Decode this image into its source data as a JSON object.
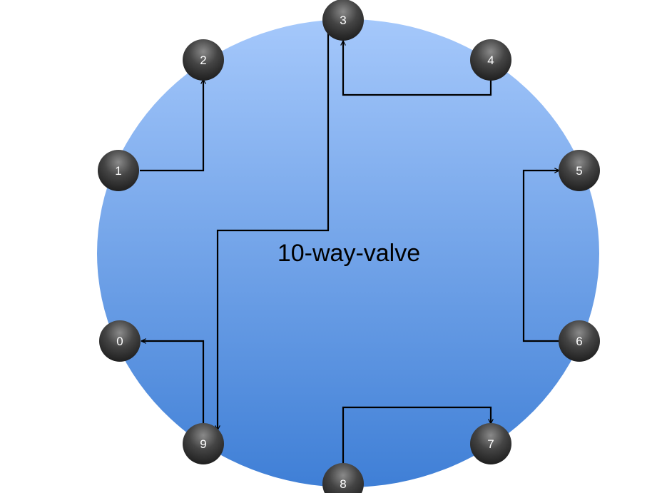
{
  "diagram": {
    "title": "10-way-valve",
    "ports": [
      {
        "id": "0",
        "label": "0"
      },
      {
        "id": "1",
        "label": "1"
      },
      {
        "id": "2",
        "label": "2"
      },
      {
        "id": "3",
        "label": "3"
      },
      {
        "id": "4",
        "label": "4"
      },
      {
        "id": "5",
        "label": "5"
      },
      {
        "id": "6",
        "label": "6"
      },
      {
        "id": "7",
        "label": "7"
      },
      {
        "id": "8",
        "label": "8"
      },
      {
        "id": "9",
        "label": "9"
      }
    ],
    "connections": [
      {
        "from": "1",
        "to": "2"
      },
      {
        "from": "4",
        "to": "3"
      },
      {
        "from": "6",
        "to": "5"
      },
      {
        "from": "8",
        "to": "7"
      },
      {
        "from": "9",
        "to": "0"
      },
      {
        "from": "3",
        "to": "9"
      }
    ],
    "colors": {
      "body_light": "#a5c8fb",
      "body_dark": "#3f7fd6",
      "port_fill": "#3a3a3a",
      "line": "#000000"
    }
  }
}
